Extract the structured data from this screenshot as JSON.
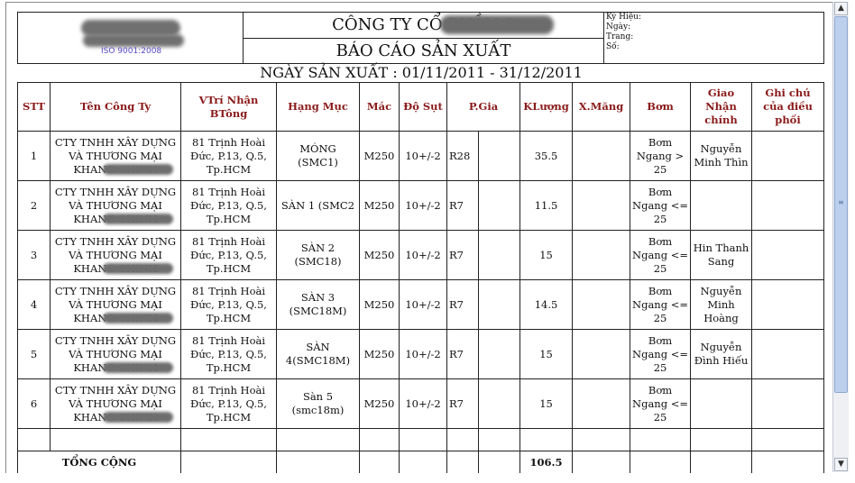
{
  "header": {
    "company": "CÔNG TY CỔ PHẦN S",
    "report_title": "BÁO CÁO SẢN XUẤT",
    "iso": "ISO 9001:2008",
    "meta": {
      "symbol": "Ký Hiệu:",
      "date": "Ngày:",
      "page": "Trang:",
      "number": "Số:"
    },
    "production_date": "NGÀY SẢN XUẤT : 01/11/2011 - 31/12/2011"
  },
  "table": {
    "columns": {
      "stt": "STT",
      "company": "Tên Công Ty",
      "location": "VTrí Nhận BTông",
      "item": "Hạng Mục",
      "grade": "Mác",
      "slump": "Độ Sụt",
      "price": "P.Gia",
      "volume": "KLượng",
      "cement": "X.Măng",
      "pump": "Bơm",
      "receiver": "Giao Nhận chính",
      "note": "Ghi chú của điều phối"
    },
    "rows": [
      {
        "stt": "1",
        "company": "CTY TNHH XÂY DỰNG VÀ THƯƠNG MẠI KHANG CHINH",
        "location": "81 Trịnh Hoài Đức, P.13, Q.5, Tp.HCM",
        "item": "MÓNG (SMC1)",
        "grade": "M250",
        "slump": "10+/-2",
        "price": "R28",
        "volume": "35.5",
        "cement": "",
        "pump": "Bơm Ngang > 25",
        "receiver": "Nguyễn Minh Thìn",
        "note": ""
      },
      {
        "stt": "2",
        "company": "CTY TNHH XÂY DỰNG VÀ THƯƠNG MẠI KHANG CHINH",
        "location": "81 Trịnh Hoài Đức, P.13, Q.5, Tp.HCM",
        "item": "SÀN 1 (SMC2",
        "grade": "M250",
        "slump": "10+/-2",
        "price": "R7",
        "volume": "11.5",
        "cement": "",
        "pump": "Bơm Ngang <= 25",
        "receiver": "",
        "note": ""
      },
      {
        "stt": "3",
        "company": "CTY TNHH XÂY DỰNG VÀ THƯƠNG MẠI KHANG CHINH",
        "location": "81 Trịnh Hoài Đức, P.13, Q.5, Tp.HCM",
        "item": "SÀN 2 (SMC18)",
        "grade": "M250",
        "slump": "10+/-2",
        "price": "R7",
        "volume": "15",
        "cement": "",
        "pump": "Bơm Ngang <= 25",
        "receiver": "Hin Thanh Sang",
        "note": ""
      },
      {
        "stt": "4",
        "company": "CTY TNHH XÂY DỰNG VÀ THƯƠNG MẠI KHANG CHINH",
        "location": "81 Trịnh Hoài Đức, P.13, Q.5, Tp.HCM",
        "item": "SÀN 3 (SMC18M)",
        "grade": "M250",
        "slump": "10+/-2",
        "price": "R7",
        "volume": "14.5",
        "cement": "",
        "pump": "Bơm Ngang <= 25",
        "receiver": "Nguyễn Minh Hoàng",
        "note": ""
      },
      {
        "stt": "5",
        "company": "CTY TNHH XÂY DỰNG VÀ THƯƠNG MẠI KHANG CHINH",
        "location": "81 Trịnh Hoài Đức, P.13, Q.5, Tp.HCM",
        "item": "SÀN 4(SMC18M)",
        "grade": "M250",
        "slump": "10+/-2",
        "price": "R7",
        "volume": "15",
        "cement": "",
        "pump": "Bơm Ngang <= 25",
        "receiver": "Nguyễn Đình Hiếu",
        "note": ""
      },
      {
        "stt": "6",
        "company": "CTY TNHH XÂY DỰNG VÀ THƯƠNG MẠI KHANG CHINH",
        "location": "81 Trịnh Hoài Đức, P.13, Q.5, Tp.HCM",
        "item": "Sàn 5 (smc18m)",
        "grade": "M250",
        "slump": "10+/-2",
        "price": "R7",
        "volume": "15",
        "cement": "",
        "pump": "Bơm Ngang <= 25",
        "receiver": "",
        "note": ""
      }
    ],
    "total_label": "TỔNG CỘNG",
    "total_volume": "106.5"
  },
  "scrollbar": {
    "up_icon": "triangle-up",
    "down_icon": "triangle-down",
    "thumb_fraction": 0.82
  }
}
